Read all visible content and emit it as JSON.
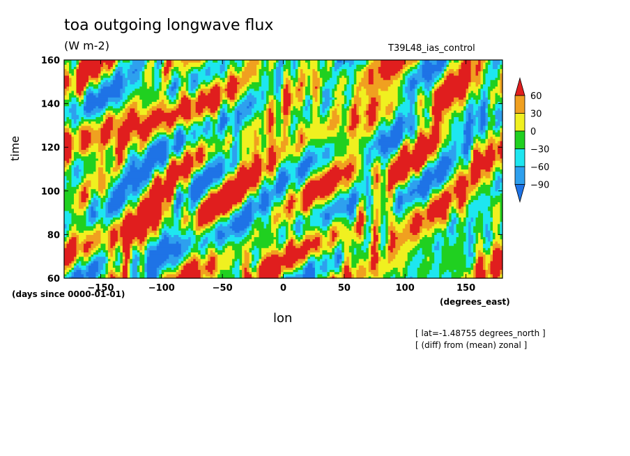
{
  "chart_data": {
    "type": "heatmap",
    "title": "toa outgoing longwave flux",
    "units": "(W m-2)",
    "experiment": "T39L48_ias_control",
    "xlabel": "lon",
    "x_units": "(degrees_east)",
    "ylabel": "time",
    "y_units": "(days since 0000-01-01)",
    "xlim": [
      -180,
      180
    ],
    "ylim": [
      60,
      160
    ],
    "x_ticks": [
      -150,
      -100,
      -50,
      0,
      50,
      100,
      150
    ],
    "y_ticks": [
      60,
      80,
      100,
      120,
      140,
      160
    ],
    "x_tick_labels": [
      "-150",
      "-100",
      "-50",
      "0",
      "50",
      "100",
      "150"
    ],
    "y_tick_labels": [
      "60",
      "80",
      "100",
      "120",
      "140",
      "160"
    ],
    "colorbar": {
      "levels": [
        -90,
        -60,
        -30,
        0,
        30,
        60
      ],
      "labels": [
        "−90",
        "−60",
        "−30",
        "0",
        "30",
        "60"
      ],
      "colors": [
        "#1e73e6",
        "#2ea0ee",
        "#1ee6f0",
        "#20d020",
        "#f0f020",
        "#f0a020",
        "#e01e1e"
      ],
      "extend": "both"
    },
    "notes": [
      "[ lat=-1.48755 degrees_north ]",
      "[ (diff) from (mean) zonal ]"
    ],
    "field_description": "Longitude-time Hovmoller of TOA OLR anomaly; positive (red) bands tilt eastward with time (~eastward propagation)."
  }
}
